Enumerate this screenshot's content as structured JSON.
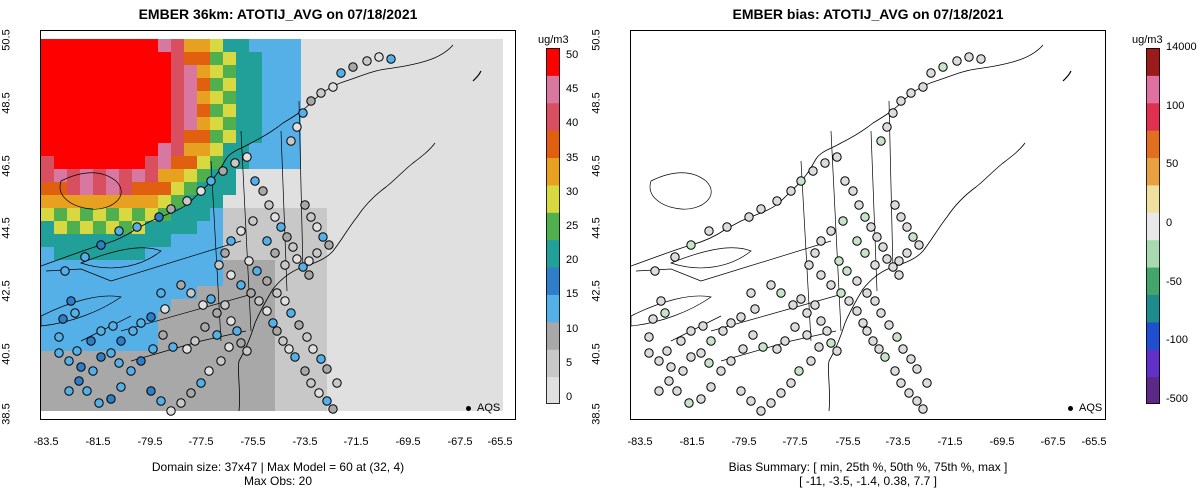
{
  "left_panel": {
    "title": "EMBER 36km: ATOTIJ_AVG on 07/18/2021",
    "colorbar_title": "ug/m3",
    "colorbar_ticks": [
      "50",
      "45",
      "40",
      "35",
      "30",
      "25",
      "20",
      "15",
      "10",
      "5",
      "0"
    ],
    "caption_line1": "Domain size: 37x47 | Max Model = 60 at (32, 4)",
    "caption_line2": "Max Obs: 20",
    "legend_label": "AQS"
  },
  "right_panel": {
    "title": "EMBER bias: ATOTIJ_AVG on 07/18/2021",
    "colorbar_title": "ug/m3",
    "colorbar_ticks": [
      "14000",
      "100",
      "50",
      "0",
      "-50",
      "-100",
      "-500"
    ],
    "caption_line1": "Bias Summary: [ min, 25th %, 50th %, 75th %, max ]",
    "caption_line2": "[ -11,   -3.5,   -1.4,   0.38,   7.7 ]",
    "legend_label": "AQS"
  },
  "axes": {
    "lat_ticks": [
      "50.5",
      "48.5",
      "46.5",
      "44.5",
      "42.5",
      "40.5",
      "38.5"
    ],
    "lon_ticks": [
      "-83.5",
      "-81.5",
      "-79.5",
      "-77.5",
      "-75.5",
      "-73.5",
      "-71.5",
      "-69.5",
      "-67.5",
      "-65.5"
    ]
  },
  "colors": {
    "concentration_scale": [
      "#e0e0e0",
      "#c8c8c8",
      "#a8a8a8",
      "#56b0e8",
      "#2f7fc8",
      "#20a098",
      "#50b050",
      "#d8d840",
      "#e8a020",
      "#e06010",
      "#d85060",
      "#d878a0",
      "#ff0000"
    ],
    "bias_scale": [
      "#5b2a86",
      "#6030c8",
      "#1f4fd0",
      "#1e8c8c",
      "#43a56b",
      "#a8d8b0",
      "#e8e8e8",
      "#f0e0a0",
      "#e8a040",
      "#e07020",
      "#e03050",
      "#e070a0",
      "#9b1b1b"
    ],
    "bias_site_default": "#dcdcdc",
    "bias_site_green": "#c8e4c8",
    "land_background": "#e6e6e6"
  }
}
